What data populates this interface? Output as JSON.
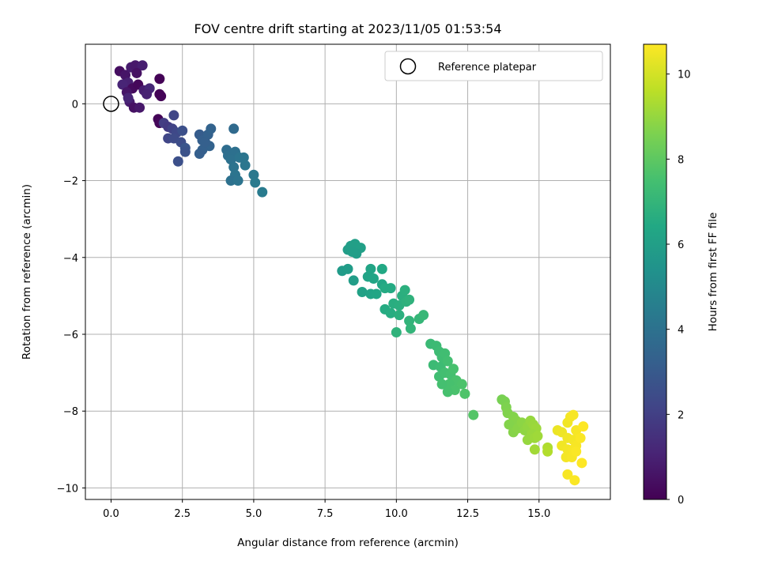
{
  "chart_data": {
    "type": "scatter",
    "title": "FOV centre drift starting at 2023/11/05 01:53:54",
    "xlabel": "Angular distance from reference (arcmin)",
    "ylabel": "Rotation from reference (arcmin)",
    "xlim": [
      -0.9,
      17.5
    ],
    "ylim": [
      -10.3,
      1.55
    ],
    "xticks": [
      0.0,
      2.5,
      5.0,
      7.5,
      10.0,
      12.5,
      15.0
    ],
    "xtick_labels": [
      "0.0",
      "2.5",
      "5.0",
      "7.5",
      "10.0",
      "12.5",
      "15.0"
    ],
    "yticks": [
      0,
      -2,
      -4,
      -6,
      -8,
      -10
    ],
    "ytick_labels": [
      "0",
      "−2",
      "−4",
      "−6",
      "−8",
      "−10"
    ],
    "grid": true,
    "legend": {
      "position": "top-right",
      "entries": [
        "Reference platepar"
      ]
    },
    "reference_point": {
      "x": 0.0,
      "y": 0.0,
      "name": "Reference platepar"
    },
    "colorbar": {
      "label": "Hours from first FF file",
      "colormap": "viridis",
      "range": [
        0,
        10.7
      ],
      "ticks": [
        0,
        2,
        4,
        6,
        8,
        10
      ],
      "tick_labels": [
        "0",
        "2",
        "4",
        "6",
        "8",
        "10"
      ]
    },
    "points": [
      [
        0.3,
        0.85,
        0.4
      ],
      [
        0.5,
        0.75,
        0.6
      ],
      [
        0.7,
        0.95,
        0.8
      ],
      [
        0.85,
        1.0,
        0.7
      ],
      [
        1.1,
        1.0,
        0.9
      ],
      [
        0.9,
        0.8,
        0.5
      ],
      [
        0.6,
        0.55,
        1.0
      ],
      [
        0.4,
        0.5,
        1.1
      ],
      [
        0.75,
        0.4,
        0.3
      ],
      [
        0.55,
        0.3,
        0.6
      ],
      [
        0.95,
        0.5,
        0.2
      ],
      [
        1.15,
        0.35,
        0.9
      ],
      [
        1.35,
        0.4,
        1.2
      ],
      [
        1.25,
        0.25,
        1.0
      ],
      [
        0.65,
        0.05,
        0.8
      ],
      [
        0.8,
        -0.1,
        0.5
      ],
      [
        1.0,
        -0.1,
        0.7
      ],
      [
        1.7,
        0.65,
        0.05
      ],
      [
        1.7,
        0.25,
        0.05
      ],
      [
        1.75,
        0.2,
        0.1
      ],
      [
        0.6,
        0.15,
        1.1
      ],
      [
        1.65,
        -0.4,
        0.1
      ],
      [
        1.7,
        -0.5,
        0.2
      ],
      [
        1.85,
        -0.5,
        1.9
      ],
      [
        2.0,
        -0.6,
        1.8
      ],
      [
        2.2,
        -0.3,
        2.2
      ],
      [
        2.15,
        -0.65,
        2.1
      ],
      [
        2.3,
        -0.75,
        2.3
      ],
      [
        2.0,
        -0.9,
        2.2
      ],
      [
        2.2,
        -0.9,
        2.4
      ],
      [
        2.5,
        -0.7,
        2.6
      ],
      [
        2.45,
        -1.0,
        2.5
      ],
      [
        2.6,
        -1.15,
        2.8
      ],
      [
        2.6,
        -1.25,
        2.7
      ],
      [
        2.35,
        -1.5,
        2.6
      ],
      [
        3.1,
        -0.8,
        3.1
      ],
      [
        3.2,
        -0.95,
        3.2
      ],
      [
        3.4,
        -0.8,
        3.3
      ],
      [
        3.5,
        -0.65,
        3.4
      ],
      [
        3.45,
        -1.1,
        3.4
      ],
      [
        3.2,
        -1.2,
        3.3
      ],
      [
        3.1,
        -1.3,
        3.2
      ],
      [
        3.3,
        -1.0,
        3.25
      ],
      [
        4.3,
        -0.65,
        3.7
      ],
      [
        4.05,
        -1.2,
        3.8
      ],
      [
        4.1,
        -1.35,
        3.9
      ],
      [
        4.35,
        -1.25,
        3.95
      ],
      [
        4.2,
        -1.45,
        4.0
      ],
      [
        4.3,
        -1.65,
        4.05
      ],
      [
        4.5,
        -1.4,
        4.1
      ],
      [
        4.65,
        -1.4,
        4.15
      ],
      [
        4.7,
        -1.6,
        4.2
      ],
      [
        4.35,
        -1.85,
        4.1
      ],
      [
        4.2,
        -2.0,
        4.0
      ],
      [
        4.45,
        -2.0,
        4.1
      ],
      [
        5.0,
        -1.85,
        4.3
      ],
      [
        5.05,
        -2.05,
        4.35
      ],
      [
        5.3,
        -2.3,
        4.4
      ],
      [
        8.3,
        -3.8,
        5.9
      ],
      [
        8.4,
        -3.7,
        5.95
      ],
      [
        8.55,
        -3.65,
        6.0
      ],
      [
        8.75,
        -3.75,
        6.05
      ],
      [
        8.6,
        -3.9,
        5.9
      ],
      [
        8.45,
        -3.85,
        5.95
      ],
      [
        8.1,
        -4.35,
        5.8
      ],
      [
        8.3,
        -4.3,
        5.85
      ],
      [
        8.5,
        -4.6,
        5.9
      ],
      [
        8.8,
        -4.9,
        6.1
      ],
      [
        9.0,
        -4.5,
        6.2
      ],
      [
        9.1,
        -4.3,
        6.25
      ],
      [
        9.2,
        -4.55,
        6.3
      ],
      [
        9.1,
        -4.95,
        6.2
      ],
      [
        9.3,
        -4.95,
        6.3
      ],
      [
        9.5,
        -4.7,
        6.35
      ],
      [
        9.5,
        -4.3,
        6.4
      ],
      [
        9.6,
        -4.8,
        6.5
      ],
      [
        9.8,
        -4.8,
        6.5
      ],
      [
        9.6,
        -5.35,
        6.55
      ],
      [
        9.8,
        -5.45,
        6.6
      ],
      [
        9.9,
        -5.2,
        6.65
      ],
      [
        10.1,
        -5.25,
        6.7
      ],
      [
        10.2,
        -5.0,
        6.7
      ],
      [
        10.3,
        -4.85,
        6.75
      ],
      [
        10.35,
        -5.15,
        6.8
      ],
      [
        10.1,
        -5.5,
        6.75
      ],
      [
        10.45,
        -5.1,
        6.85
      ],
      [
        10.0,
        -5.95,
        6.9
      ],
      [
        10.45,
        -5.65,
        6.95
      ],
      [
        10.5,
        -5.85,
        7.0
      ],
      [
        10.8,
        -5.6,
        7.05
      ],
      [
        10.95,
        -5.5,
        7.1
      ],
      [
        11.2,
        -6.25,
        7.2
      ],
      [
        11.4,
        -6.3,
        7.25
      ],
      [
        11.5,
        -6.45,
        7.3
      ],
      [
        11.3,
        -6.8,
        7.25
      ],
      [
        11.55,
        -6.85,
        7.3
      ],
      [
        11.6,
        -6.6,
        7.35
      ],
      [
        11.7,
        -6.5,
        7.4
      ],
      [
        11.8,
        -6.7,
        7.45
      ],
      [
        11.5,
        -7.1,
        7.4
      ],
      [
        11.7,
        -7.0,
        7.45
      ],
      [
        11.9,
        -7.05,
        7.5
      ],
      [
        12.0,
        -6.9,
        7.55
      ],
      [
        12.1,
        -7.2,
        7.6
      ],
      [
        11.85,
        -7.3,
        7.55
      ],
      [
        11.6,
        -7.3,
        7.5
      ],
      [
        12.05,
        -7.45,
        7.6
      ],
      [
        11.8,
        -7.5,
        7.55
      ],
      [
        12.3,
        -7.3,
        7.65
      ],
      [
        12.4,
        -7.55,
        7.7
      ],
      [
        12.7,
        -8.1,
        7.8
      ],
      [
        13.7,
        -7.7,
        8.5
      ],
      [
        13.8,
        -7.75,
        8.55
      ],
      [
        13.85,
        -7.9,
        8.6
      ],
      [
        13.9,
        -8.05,
        8.65
      ],
      [
        14.1,
        -8.15,
        8.7
      ],
      [
        14.2,
        -8.25,
        8.75
      ],
      [
        13.95,
        -8.35,
        8.7
      ],
      [
        14.1,
        -8.55,
        8.75
      ],
      [
        14.25,
        -8.45,
        8.8
      ],
      [
        14.4,
        -8.3,
        8.85
      ],
      [
        14.5,
        -8.5,
        8.9
      ],
      [
        14.6,
        -8.4,
        8.95
      ],
      [
        14.7,
        -8.25,
        9.0
      ],
      [
        14.8,
        -8.35,
        9.05
      ],
      [
        14.9,
        -8.45,
        9.1
      ],
      [
        14.75,
        -8.6,
        9.05
      ],
      [
        14.6,
        -8.75,
        9.0
      ],
      [
        14.85,
        -8.7,
        9.1
      ],
      [
        14.95,
        -8.65,
        9.15
      ],
      [
        14.85,
        -9.0,
        9.2
      ],
      [
        15.3,
        -8.95,
        9.4
      ],
      [
        15.3,
        -9.05,
        9.45
      ],
      [
        15.65,
        -8.5,
        10.4
      ],
      [
        15.8,
        -8.55,
        10.45
      ],
      [
        16.0,
        -8.3,
        10.5
      ],
      [
        16.1,
        -8.15,
        10.55
      ],
      [
        16.2,
        -8.1,
        10.6
      ],
      [
        16.3,
        -8.5,
        10.6
      ],
      [
        16.0,
        -8.7,
        10.5
      ],
      [
        16.2,
        -8.75,
        10.55
      ],
      [
        16.3,
        -8.9,
        10.6
      ],
      [
        16.45,
        -8.7,
        10.65
      ],
      [
        15.8,
        -8.9,
        10.5
      ],
      [
        16.0,
        -9.0,
        10.55
      ],
      [
        16.2,
        -9.0,
        10.6
      ],
      [
        15.95,
        -9.2,
        10.55
      ],
      [
        16.15,
        -9.2,
        10.6
      ],
      [
        16.3,
        -9.05,
        10.65
      ],
      [
        16.55,
        -8.4,
        10.7
      ],
      [
        16.5,
        -9.35,
        10.7
      ],
      [
        16.0,
        -9.65,
        10.6
      ],
      [
        16.25,
        -9.8,
        10.65
      ]
    ]
  }
}
